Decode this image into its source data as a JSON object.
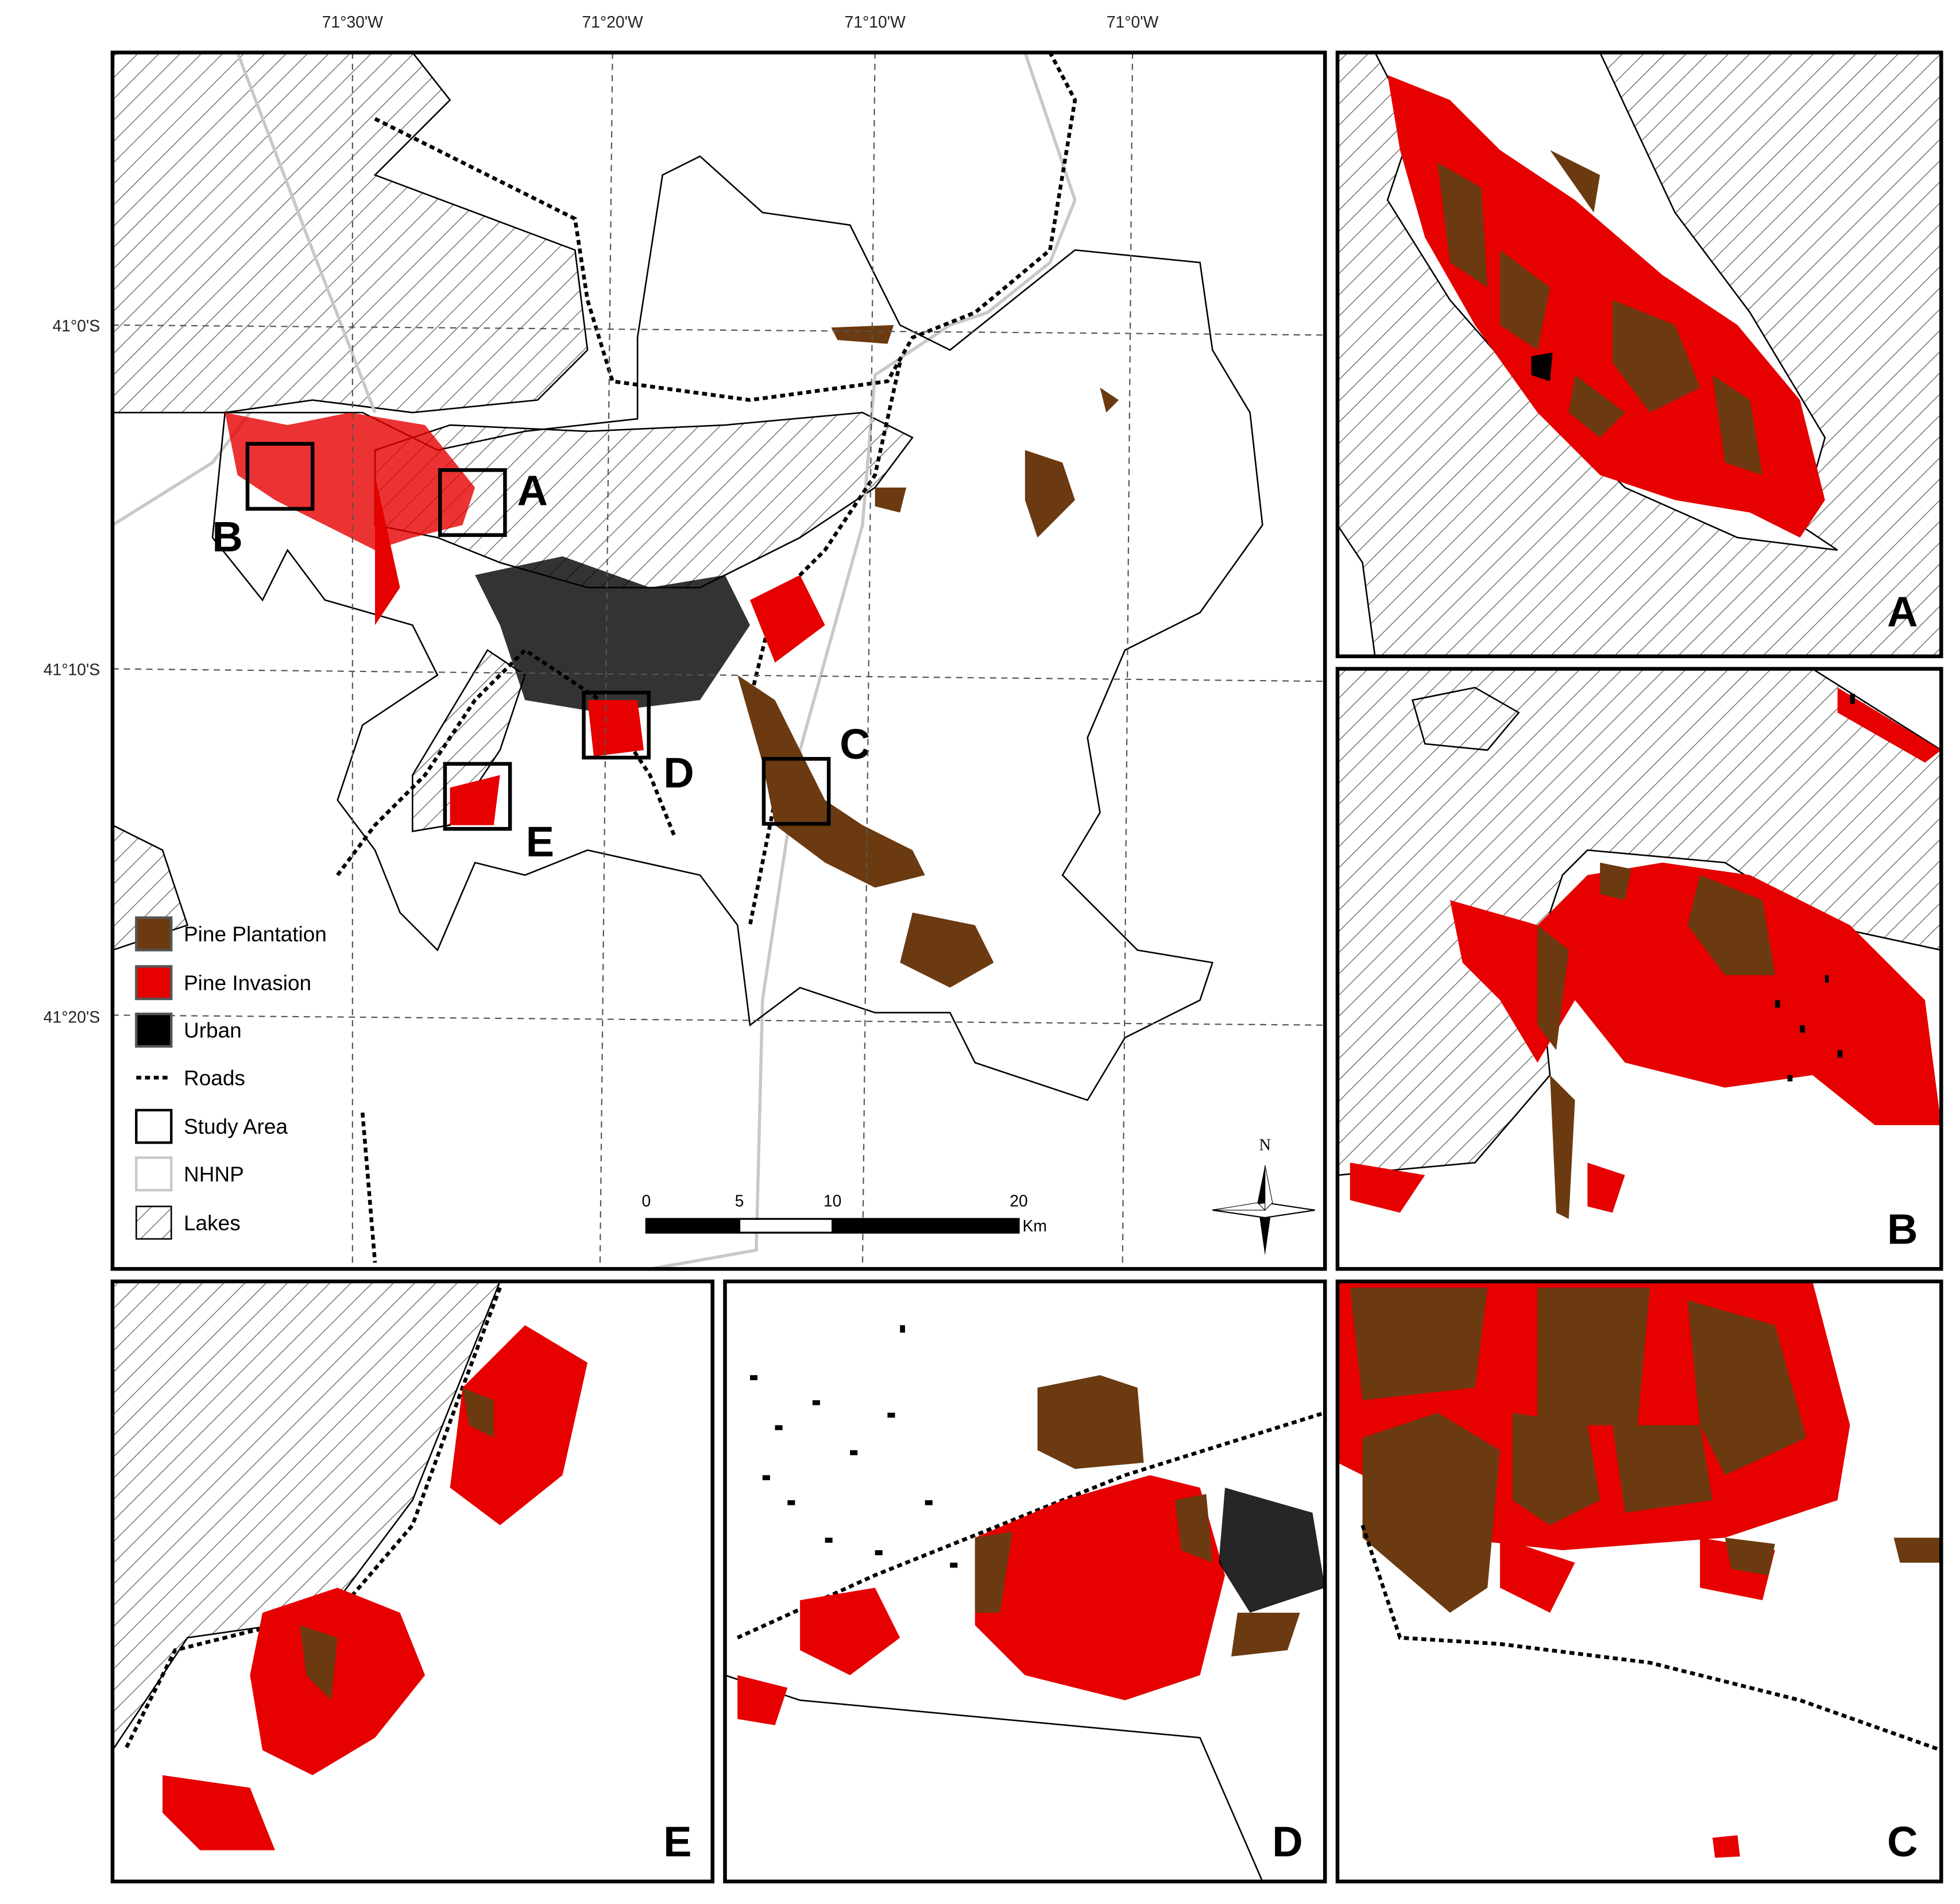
{
  "graticule": {
    "longitudes": [
      "71°30'W",
      "71°20'W",
      "71°10'W",
      "71°0'W"
    ],
    "latitudes": [
      "41°0'S",
      "41°10'S",
      "41°20'S"
    ]
  },
  "map_labels": [
    "A",
    "B",
    "C",
    "D",
    "E"
  ],
  "legend": [
    "Pine Plantation",
    "Pine Invasion",
    "Urban",
    "Roads",
    "Study Area",
    "NHNP",
    "Lakes"
  ],
  "scale_bar": {
    "ticks": [
      0,
      5,
      10,
      20
    ],
    "unit": "Km"
  },
  "north": "N",
  "insets": [
    "A",
    "B",
    "E",
    "D",
    "C"
  ]
}
